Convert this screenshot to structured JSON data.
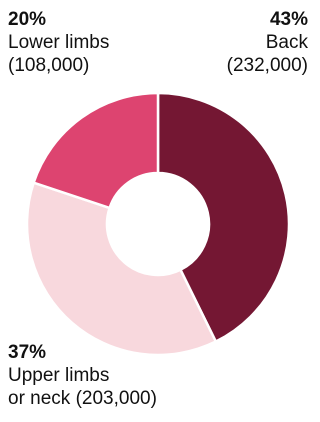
{
  "chart_data": {
    "type": "pie",
    "donut": true,
    "title": "",
    "slices": [
      {
        "label_lines": [
          "Back",
          "(232,000)"
        ],
        "percent": "43%",
        "value": 232000,
        "color": "#741733"
      },
      {
        "label_lines": [
          "Upper limbs",
          "or neck (203,000)"
        ],
        "percent": "37%",
        "value": 203000,
        "color": "#f8d8dd"
      },
      {
        "label_lines": [
          "Lower limbs",
          "(108,000)"
        ],
        "percent": "20%",
        "value": 108000,
        "color": "#dd4470"
      }
    ],
    "legend": "none"
  }
}
